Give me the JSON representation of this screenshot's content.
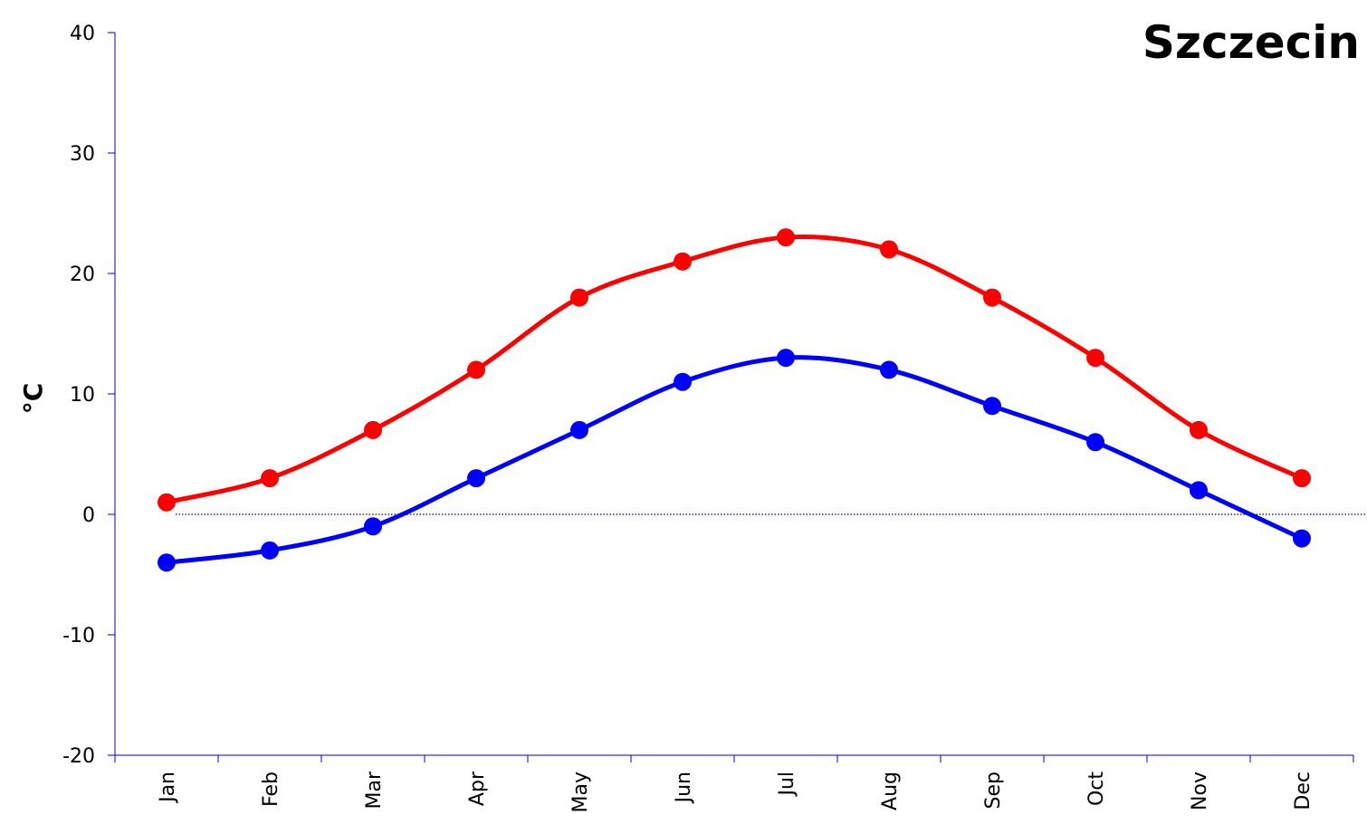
{
  "chart_data": {
    "type": "line",
    "title": "Szczecin",
    "ylabel": "°C",
    "xlabel": "",
    "ylim": [
      -20,
      40
    ],
    "yticks": [
      -20,
      -10,
      0,
      10,
      20,
      30,
      40
    ],
    "categories": [
      "Jan",
      "Feb",
      "Mar",
      "Apr",
      "May",
      "Jun",
      "Jul",
      "Aug",
      "Sep",
      "Oct",
      "Nov",
      "Dec"
    ],
    "series": [
      {
        "color": "#ff0000",
        "values": [
          1,
          3,
          7,
          12,
          18,
          21,
          23,
          22,
          18,
          13,
          7,
          3
        ]
      },
      {
        "color": "#0000ff",
        "values": [
          -4,
          -3,
          -1,
          3,
          7,
          11,
          13,
          12,
          9,
          6,
          2,
          -2
        ]
      }
    ],
    "zero_line": true,
    "grid": false,
    "axis_color": "#0000cc"
  }
}
